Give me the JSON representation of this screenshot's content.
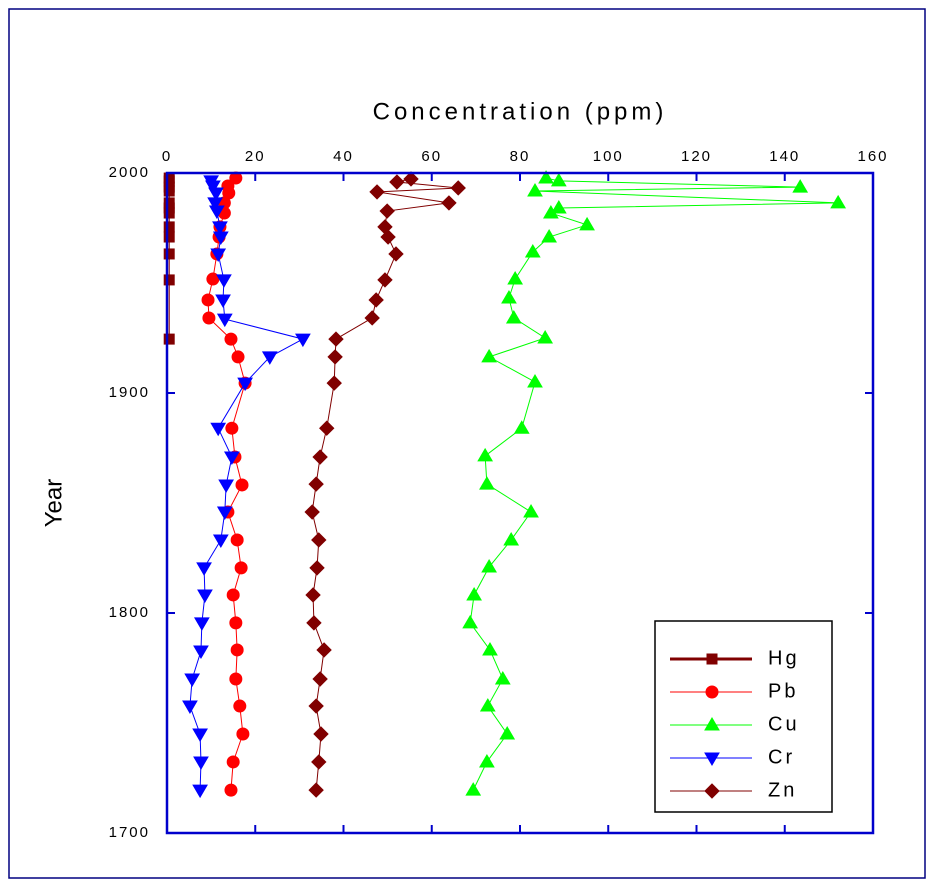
{
  "chart_data": {
    "type": "line",
    "x_label": "Concentration (ppm)",
    "y_label": "Year",
    "xlim": [
      0,
      160
    ],
    "xticks": [
      0,
      20,
      40,
      60,
      80,
      100,
      120,
      140,
      160
    ],
    "ylim": [
      2000,
      1700
    ],
    "yticks": [
      1700,
      1800,
      1900,
      2000
    ],
    "legend": "lower right",
    "series": [
      {
        "name": "Hg",
        "color": "#800000",
        "marker": "square",
        "x": [
          0.5,
          0.5,
          0.5,
          0.5,
          0.5,
          0.5,
          0.5,
          0.5,
          0.5,
          0.5,
          0.5,
          0.5
        ],
        "values": [
          1997.7,
          1996.4,
          1993.6,
          1991.8,
          1986.4,
          1984.1,
          1981.8,
          1975.5,
          1970.9,
          1963.2,
          1951.4,
          1924.5
        ]
      },
      {
        "name": "Pb",
        "color": "#ff0000",
        "marker": "circle",
        "x": [
          15.6,
          13.8,
          14,
          13,
          13,
          12,
          11.8,
          11.3,
          10.4,
          9.3,
          9.5,
          14.5,
          16.1,
          17.7,
          14.7,
          15.4,
          17,
          13.8,
          15.9,
          16.8,
          15,
          15.6,
          15.9,
          15.6,
          16.5,
          17.2,
          15,
          14.5
        ],
        "values": [
          1997.7,
          1994.1,
          1990.9,
          1986.4,
          1981.8,
          1975.5,
          1970.9,
          1963.2,
          1951.8,
          1942.3,
          1934.1,
          1924.5,
          1916.4,
          1904.5,
          1884,
          1870.9,
          1858.2,
          1845.9,
          1833.2,
          1820.5,
          1808.2,
          1795.5,
          1783.2,
          1770,
          1757.7,
          1745,
          1732.3,
          1719.5
        ]
      },
      {
        "name": "Cu",
        "color": "#00ff00",
        "marker": "triangle-up",
        "x": [
          85.9,
          88.8,
          143.5,
          83.4,
          152.1,
          88.8,
          87,
          95.2,
          86.6,
          82.9,
          78.9,
          77.5,
          78.6,
          85.7,
          73,
          83.4,
          80.4,
          72.1,
          72.5,
          82.5,
          78,
          73,
          69.6,
          68.7,
          73.2,
          76.1,
          72.7,
          77.1,
          72.5,
          69.4
        ],
        "values": [
          1997.7,
          1996.4,
          1993.6,
          1991.8,
          1986.4,
          1984.1,
          1981.8,
          1976.4,
          1970.9,
          1964.1,
          1951.8,
          1943.2,
          1934.1,
          1925,
          1916.4,
          1905,
          1884,
          1871.4,
          1858.6,
          1845.9,
          1833.2,
          1820.9,
          1808.2,
          1795.5,
          1783.2,
          1770,
          1757.7,
          1745,
          1732.3,
          1719.5
        ]
      },
      {
        "name": "Cr",
        "color": "#0000ff",
        "marker": "triangle-down",
        "x": [
          10,
          10.4,
          11.1,
          10.9,
          11.3,
          12,
          12.2,
          11.6,
          12.9,
          12.7,
          13.1,
          30.8,
          23.3,
          17.7,
          11.6,
          14.7,
          13.4,
          13.1,
          12.2,
          8.4,
          8.6,
          7.9,
          7.7,
          5.7,
          5.2,
          7.5,
          7.7,
          7.5
        ],
        "values": [
          1996.4,
          1994.1,
          1990.9,
          1986.4,
          1982.7,
          1975.5,
          1970.9,
          1963.2,
          1951.4,
          1942.3,
          1933.6,
          1924.5,
          1916.4,
          1904.5,
          1884,
          1870.9,
          1858.2,
          1845.9,
          1833.2,
          1820.5,
          1808.2,
          1795.5,
          1782.7,
          1770,
          1757.7,
          1745,
          1732.3,
          1719.5
        ]
      },
      {
        "name": "Zn",
        "color": "#800000",
        "marker": "diamond",
        "x": [
          55.3,
          52.1,
          66,
          47.6,
          63.9,
          49.9,
          49.4,
          50.1,
          51.9,
          49.4,
          47.4,
          46.5,
          38.3,
          38.1,
          37.9,
          36.2,
          34.7,
          33.8,
          32.9,
          34.4,
          34,
          33.1,
          33.3,
          35.6,
          34.7,
          33.8,
          34.9,
          34.4,
          33.8
        ],
        "values": [
          1997.3,
          1995.9,
          1993.2,
          1991.4,
          1986.4,
          1982.7,
          1975.5,
          1970.9,
          1963.2,
          1951.4,
          1942.3,
          1934.1,
          1924.5,
          1916.4,
          1904.5,
          1884,
          1870.9,
          1858.6,
          1845.9,
          1833.2,
          1820.5,
          1808.2,
          1795.5,
          1783.2,
          1770,
          1757.7,
          1745,
          1732.3,
          1719.5
        ]
      }
    ]
  }
}
